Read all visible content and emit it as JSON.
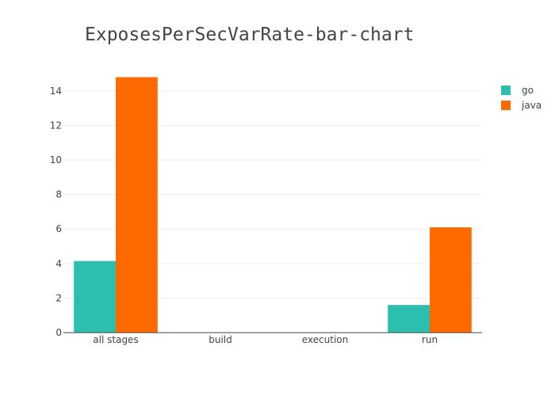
{
  "chart_data": {
    "type": "bar",
    "title": "ExposesPerSecVarRate-bar-chart",
    "xlabel": "",
    "ylabel": "",
    "categories": [
      "all stages",
      "build",
      "execution",
      "run"
    ],
    "series": [
      {
        "name": "go",
        "color": "#2bbfb0",
        "values": [
          4.15,
          0,
          0,
          1.6
        ]
      },
      {
        "name": "java",
        "color": "#ff6a00",
        "values": [
          14.8,
          0,
          0,
          6.1
        ]
      }
    ],
    "ylim": [
      0,
      15.6
    ],
    "yticks": [
      0,
      2,
      4,
      6,
      8,
      10,
      12,
      14
    ],
    "grid": true,
    "legend_position": "top-right"
  }
}
